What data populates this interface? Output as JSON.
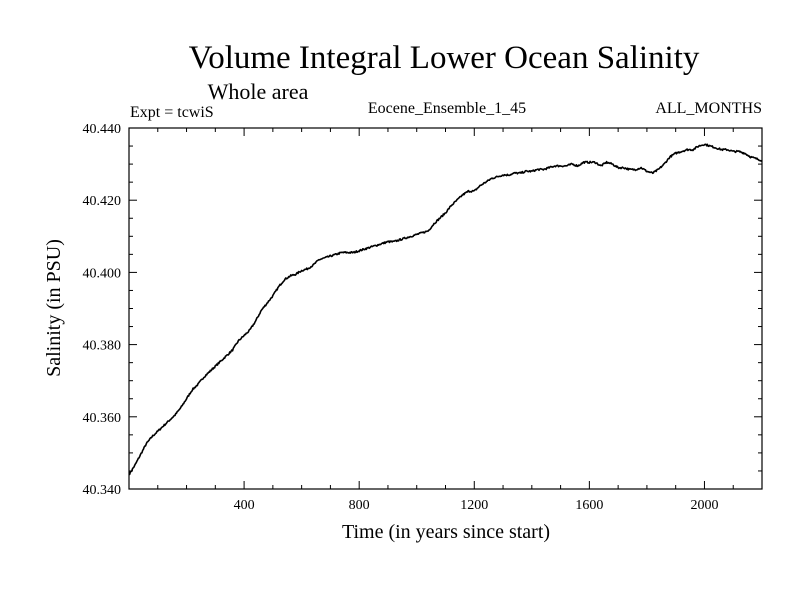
{
  "chart_data": {
    "type": "line",
    "title": "Volume Integral Lower Ocean Salinity",
    "subtitle": "Whole area",
    "expt_label": "Expt = tcwiS",
    "ensemble_label": "Eocene_Ensemble_1_45",
    "months_label": "ALL_MONTHS",
    "xlabel": "Time (in years since start)",
    "ylabel": "Salinity (in PSU)",
    "xlim": [
      0,
      2200
    ],
    "ylim": [
      40.34,
      40.44
    ],
    "xticks": [
      400,
      800,
      1200,
      1600,
      2000
    ],
    "xtick_labels": [
      "400",
      "800",
      "1200",
      "1600",
      "2000"
    ],
    "yticks": [
      40.34,
      40.36,
      40.38,
      40.4,
      40.42,
      40.44
    ],
    "ytick_labels": [
      "40.340",
      "40.360",
      "40.380",
      "40.400",
      "40.420",
      "40.440"
    ],
    "grid": false,
    "series": [
      {
        "x": [
          0,
          20,
          40,
          60,
          80,
          100,
          120,
          140,
          160,
          180,
          200,
          220,
          240,
          260,
          280,
          300,
          320,
          340,
          360,
          380,
          400,
          420,
          440,
          460,
          480,
          500,
          520,
          540,
          560,
          580,
          600,
          620,
          640,
          660,
          680,
          700,
          720,
          740,
          760,
          780,
          800,
          820,
          840,
          860,
          880,
          900,
          920,
          940,
          960,
          980,
          1000,
          1020,
          1040,
          1060,
          1080,
          1100,
          1120,
          1140,
          1160,
          1180,
          1200,
          1220,
          1240,
          1260,
          1280,
          1300,
          1320,
          1340,
          1360,
          1380,
          1400,
          1420,
          1440,
          1460,
          1480,
          1500,
          1520,
          1540,
          1560,
          1580,
          1600,
          1620,
          1640,
          1660,
          1680,
          1700,
          1720,
          1740,
          1760,
          1780,
          1800,
          1820,
          1840,
          1860,
          1880,
          1900,
          1920,
          1940,
          1960,
          1980,
          2000,
          2020,
          2040,
          2060,
          2080,
          2100,
          2120,
          2140,
          2160,
          2180,
          2200
        ],
        "values": [
          40.344,
          40.3465,
          40.3495,
          40.3525,
          40.3545,
          40.356,
          40.3575,
          40.359,
          40.3605,
          40.3625,
          40.365,
          40.3675,
          40.369,
          40.371,
          40.3725,
          40.374,
          40.3755,
          40.377,
          40.3785,
          40.381,
          40.3825,
          40.384,
          40.3865,
          40.3895,
          40.3915,
          40.3935,
          40.396,
          40.398,
          40.399,
          40.3995,
          40.4005,
          40.401,
          40.402,
          40.4035,
          40.404,
          40.4045,
          40.405,
          40.4055,
          40.4055,
          40.4055,
          40.406,
          40.4065,
          40.407,
          40.4075,
          40.408,
          40.4085,
          40.4085,
          40.409,
          40.4095,
          40.41,
          40.4105,
          40.411,
          40.4115,
          40.4135,
          40.415,
          40.4165,
          40.4185,
          40.42,
          40.4215,
          40.4225,
          40.4225,
          40.424,
          40.425,
          40.426,
          40.4265,
          40.427,
          40.427,
          40.4275,
          40.4275,
          40.428,
          40.428,
          40.4285,
          40.4285,
          40.429,
          40.4295,
          40.4295,
          40.4295,
          40.43,
          40.4295,
          40.4305,
          40.4305,
          40.4305,
          40.4295,
          40.4305,
          40.43,
          40.429,
          40.429,
          40.4285,
          40.4285,
          40.429,
          40.428,
          40.4275,
          40.4285,
          40.43,
          40.432,
          40.433,
          40.4335,
          40.434,
          40.434,
          40.435,
          40.4355,
          40.435,
          40.4345,
          40.434,
          40.434,
          40.4335,
          40.4335,
          40.433,
          40.432,
          40.4315,
          40.431
        ]
      }
    ]
  }
}
